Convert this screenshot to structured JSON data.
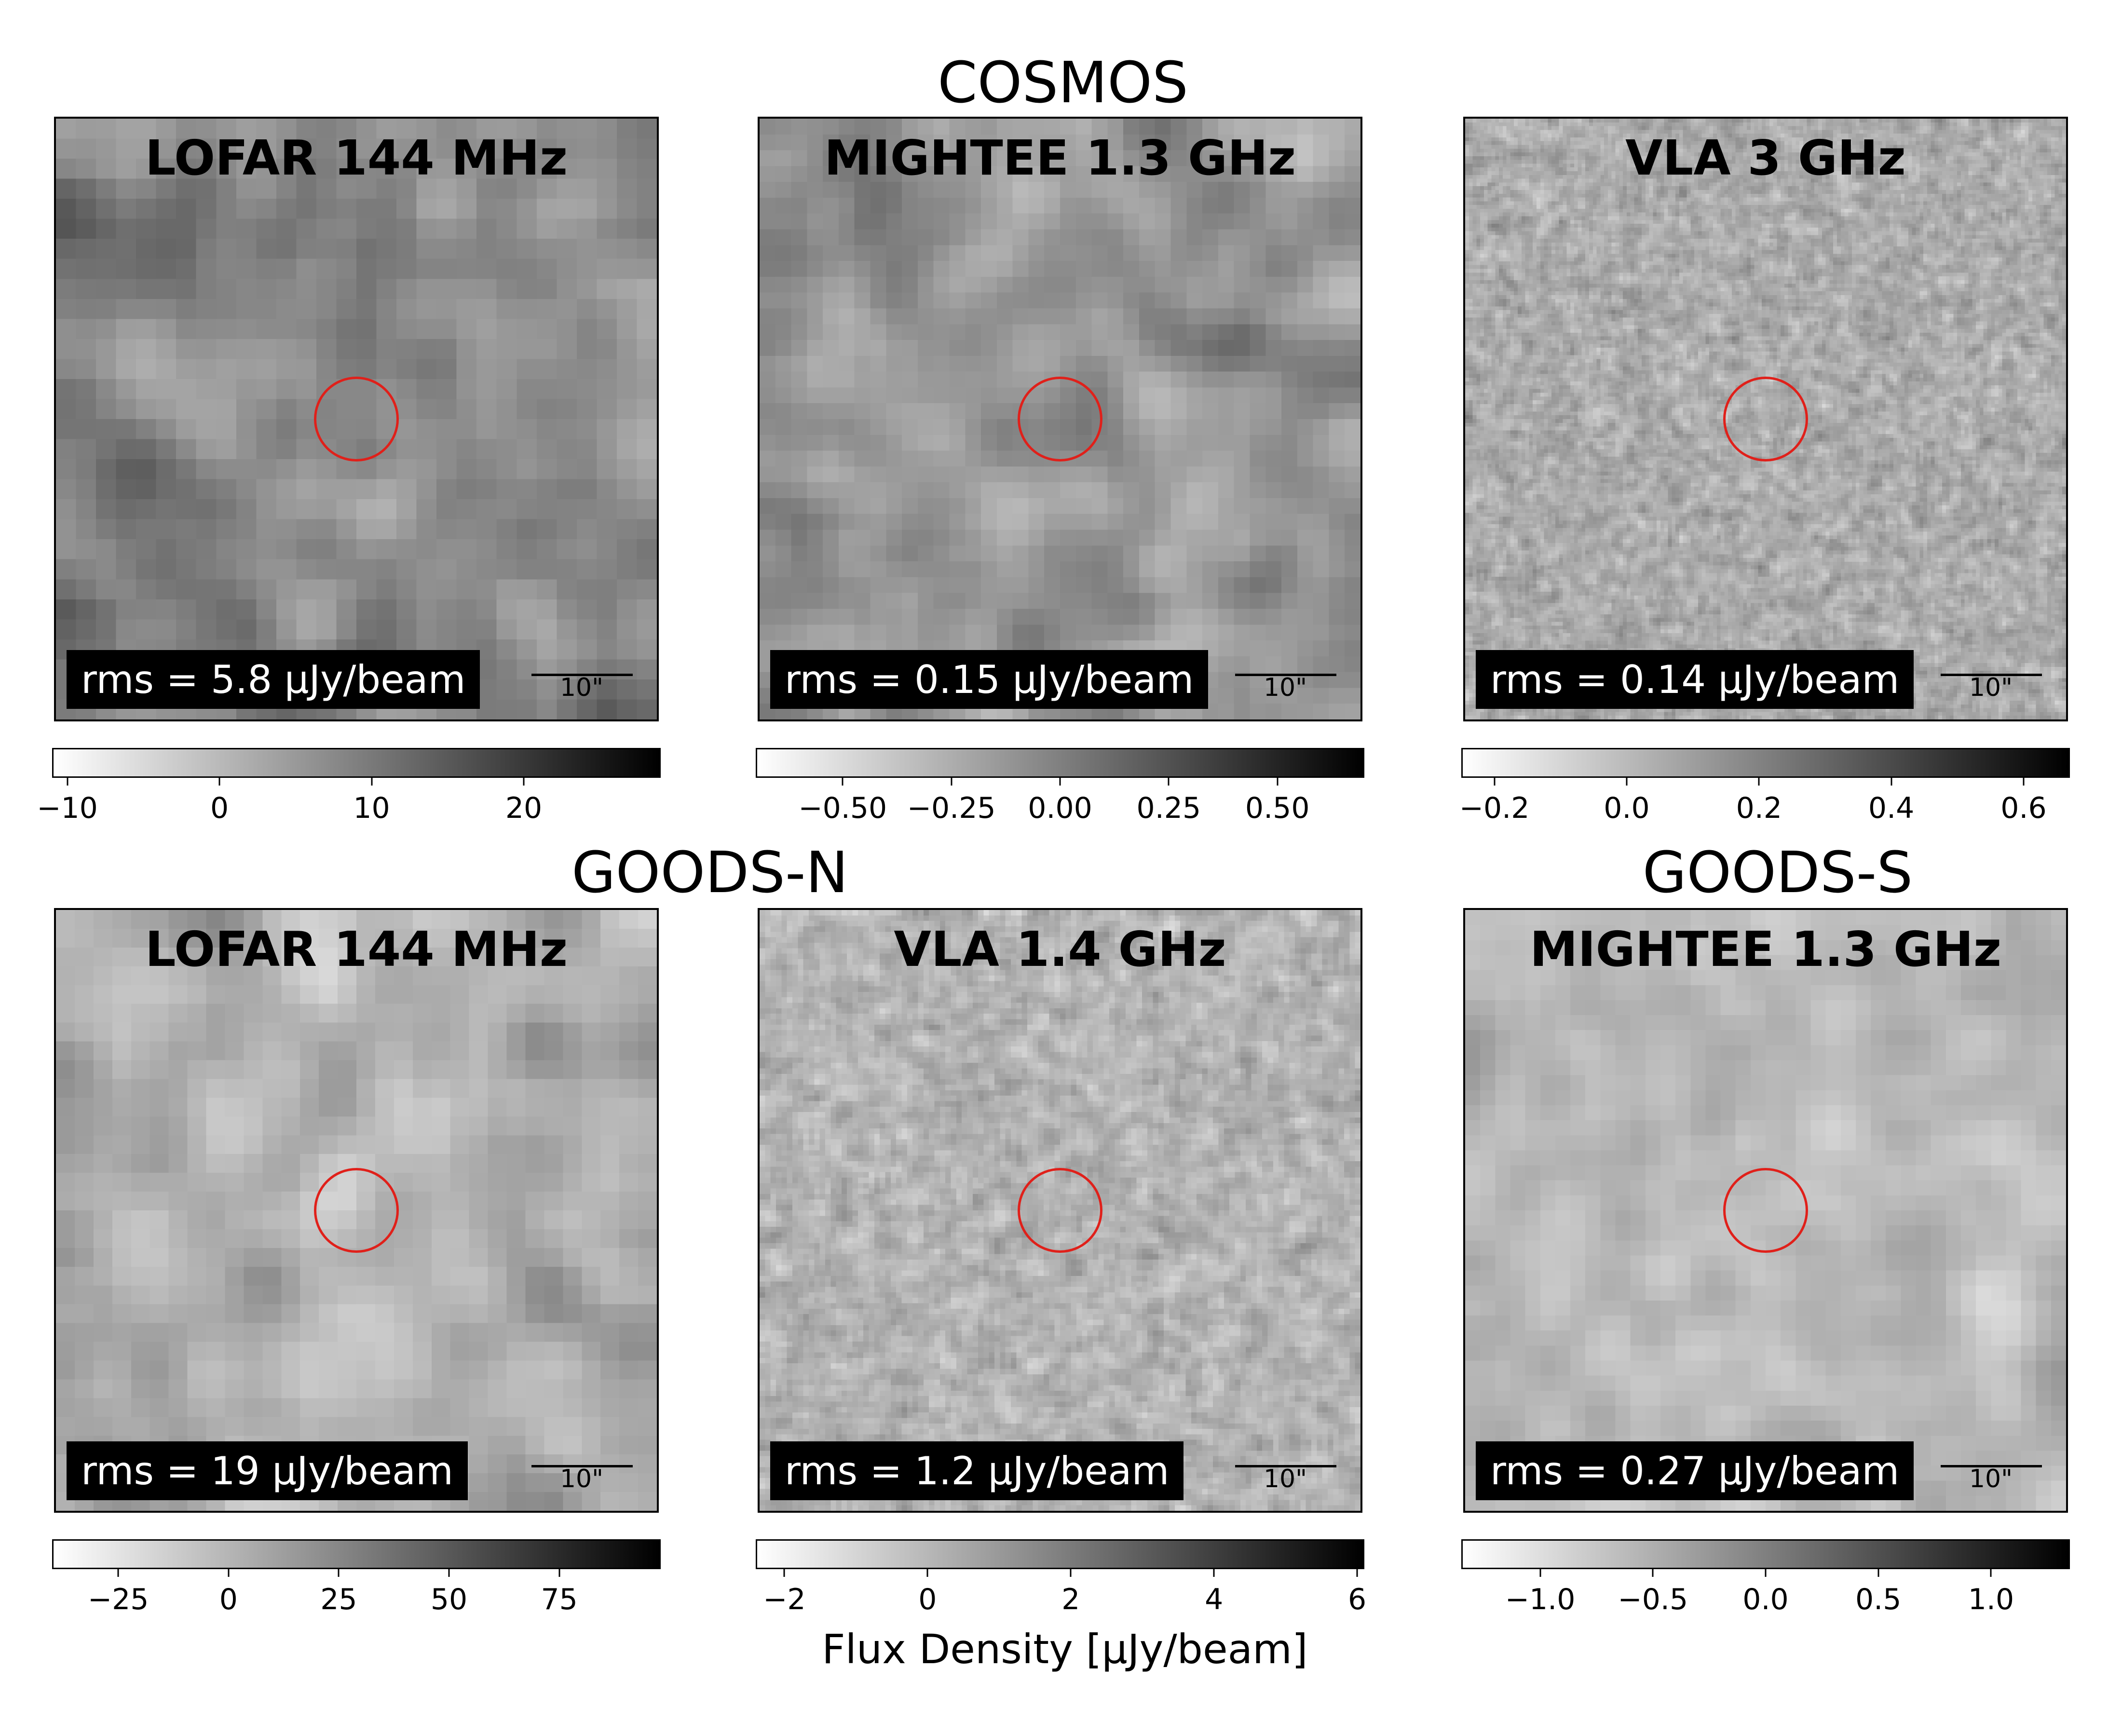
{
  "chart_data": {
    "type": "heatmap",
    "group_titles": [
      "COSMOS",
      "GOODS-N",
      "GOODS-S"
    ],
    "colorbar_label": "Flux Density [μJy/beam]",
    "colormap": "gray_r",
    "panels": [
      {
        "field": "COSMOS",
        "title": "LOFAR 144 MHz",
        "rms_label": "rms = 5.8 μJy/beam",
        "scalebar_label": "10\"",
        "vmin": -11,
        "vmax": 29,
        "ticks": [
          -10,
          0,
          10,
          20
        ],
        "tick_labels": [
          "−10",
          "0",
          "10",
          "20"
        ],
        "grid": 30,
        "seed": 11,
        "mean": 0.45,
        "contrast": 0.18,
        "smooth": 0.55
      },
      {
        "field": "COSMOS",
        "title": "MIGHTEE 1.3 GHz",
        "rms_label": "rms = 0.15 μJy/beam",
        "scalebar_label": "10\"",
        "vmin": -0.7,
        "vmax": 0.7,
        "ticks": [
          -0.5,
          -0.25,
          0.0,
          0.25,
          0.5
        ],
        "tick_labels": [
          "−0.50",
          "−0.25",
          "0.00",
          "0.25",
          "0.50"
        ],
        "grid": 38,
        "seed": 23,
        "mean": 0.42,
        "contrast": 0.15,
        "smooth": 0.75
      },
      {
        "field": "COSMOS",
        "title": "VLA 3 GHz",
        "rms_label": "rms = 0.14 μJy/beam",
        "scalebar_label": "10\"",
        "vmin": -0.25,
        "vmax": 0.67,
        "ticks": [
          -0.2,
          0.0,
          0.2,
          0.4,
          0.6
        ],
        "tick_labels": [
          "−0.2",
          "0.0",
          "0.2",
          "0.4",
          "0.6"
        ],
        "grid": 160,
        "seed": 37,
        "mean": 0.33,
        "contrast": 0.17,
        "smooth": 0.25
      },
      {
        "field": "GOODS-N",
        "title": "LOFAR 144 MHz",
        "rms_label": "rms = 19 μJy/beam",
        "scalebar_label": "10\"",
        "vmin": -40,
        "vmax": 98,
        "ticks": [
          -25,
          0,
          25,
          50,
          75
        ],
        "tick_labels": [
          "−25",
          "0",
          "25",
          "50",
          "75"
        ],
        "grid": 32,
        "seed": 51,
        "mean": 0.3,
        "contrast": 0.15,
        "smooth": 0.55
      },
      {
        "field": "GOODS-N",
        "title": "VLA 1.4 GHz",
        "rms_label": "rms = 1.2 μJy/beam",
        "scalebar_label": "10\"",
        "vmin": -2.4,
        "vmax": 6.1,
        "ticks": [
          -2,
          0,
          2,
          4,
          6
        ],
        "tick_labels": [
          "−2",
          "0",
          "2",
          "4",
          "6"
        ],
        "grid": 110,
        "seed": 67,
        "mean": 0.3,
        "contrast": 0.16,
        "smooth": 0.45
      },
      {
        "field": "GOODS-S",
        "title": "MIGHTEE 1.3 GHz",
        "rms_label": "rms = 0.27 μJy/beam",
        "scalebar_label": "10\"",
        "vmin": -1.35,
        "vmax": 1.35,
        "ticks": [
          -1.0,
          -0.5,
          0.0,
          0.5,
          1.0
        ],
        "tick_labels": [
          "−1.0",
          "−0.5",
          "0.0",
          "0.5",
          "1.0"
        ],
        "grid": 40,
        "seed": 79,
        "mean": 0.28,
        "contrast": 0.11,
        "smooth": 0.8
      }
    ]
  }
}
